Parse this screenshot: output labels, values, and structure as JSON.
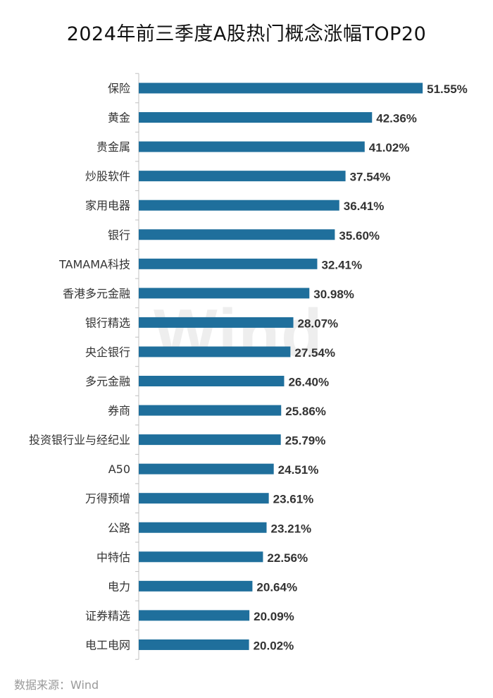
{
  "chart_data": {
    "type": "bar",
    "orientation": "horizontal",
    "title": "2024年前三季度A股热门概念涨幅TOP20",
    "categories": [
      "保险",
      "黄金",
      "贵金属",
      "炒股软件",
      "家用电器",
      "银行",
      "TAMAMA科技",
      "香港多元金融",
      "银行精选",
      "央企银行",
      "多元金融",
      "券商",
      "投资银行业与经纪业",
      "A50",
      "万得预增",
      "公路",
      "中特估",
      "电力",
      "证券精选",
      "电工电网"
    ],
    "values": [
      51.55,
      42.36,
      41.02,
      37.54,
      36.41,
      35.6,
      32.41,
      30.98,
      28.07,
      27.54,
      26.4,
      25.86,
      25.79,
      24.51,
      23.61,
      23.21,
      22.56,
      20.64,
      20.09,
      20.02
    ],
    "value_labels": [
      "51.55%",
      "42.36%",
      "41.02%",
      "37.54%",
      "36.41%",
      "35.60%",
      "32.41%",
      "30.98%",
      "28.07%",
      "27.54%",
      "26.40%",
      "25.86%",
      "25.79%",
      "24.51%",
      "23.61%",
      "23.21%",
      "22.56%",
      "20.64%",
      "20.09%",
      "20.02%"
    ],
    "unit": "%",
    "xlim": [
      0,
      52
    ],
    "grid": false,
    "legend": "none",
    "bar_color": "#1f6f9c",
    "axis_color": "#c0c0c0",
    "label_color": "#333333"
  },
  "watermark": "Wind",
  "source": "数据来源：Wind"
}
